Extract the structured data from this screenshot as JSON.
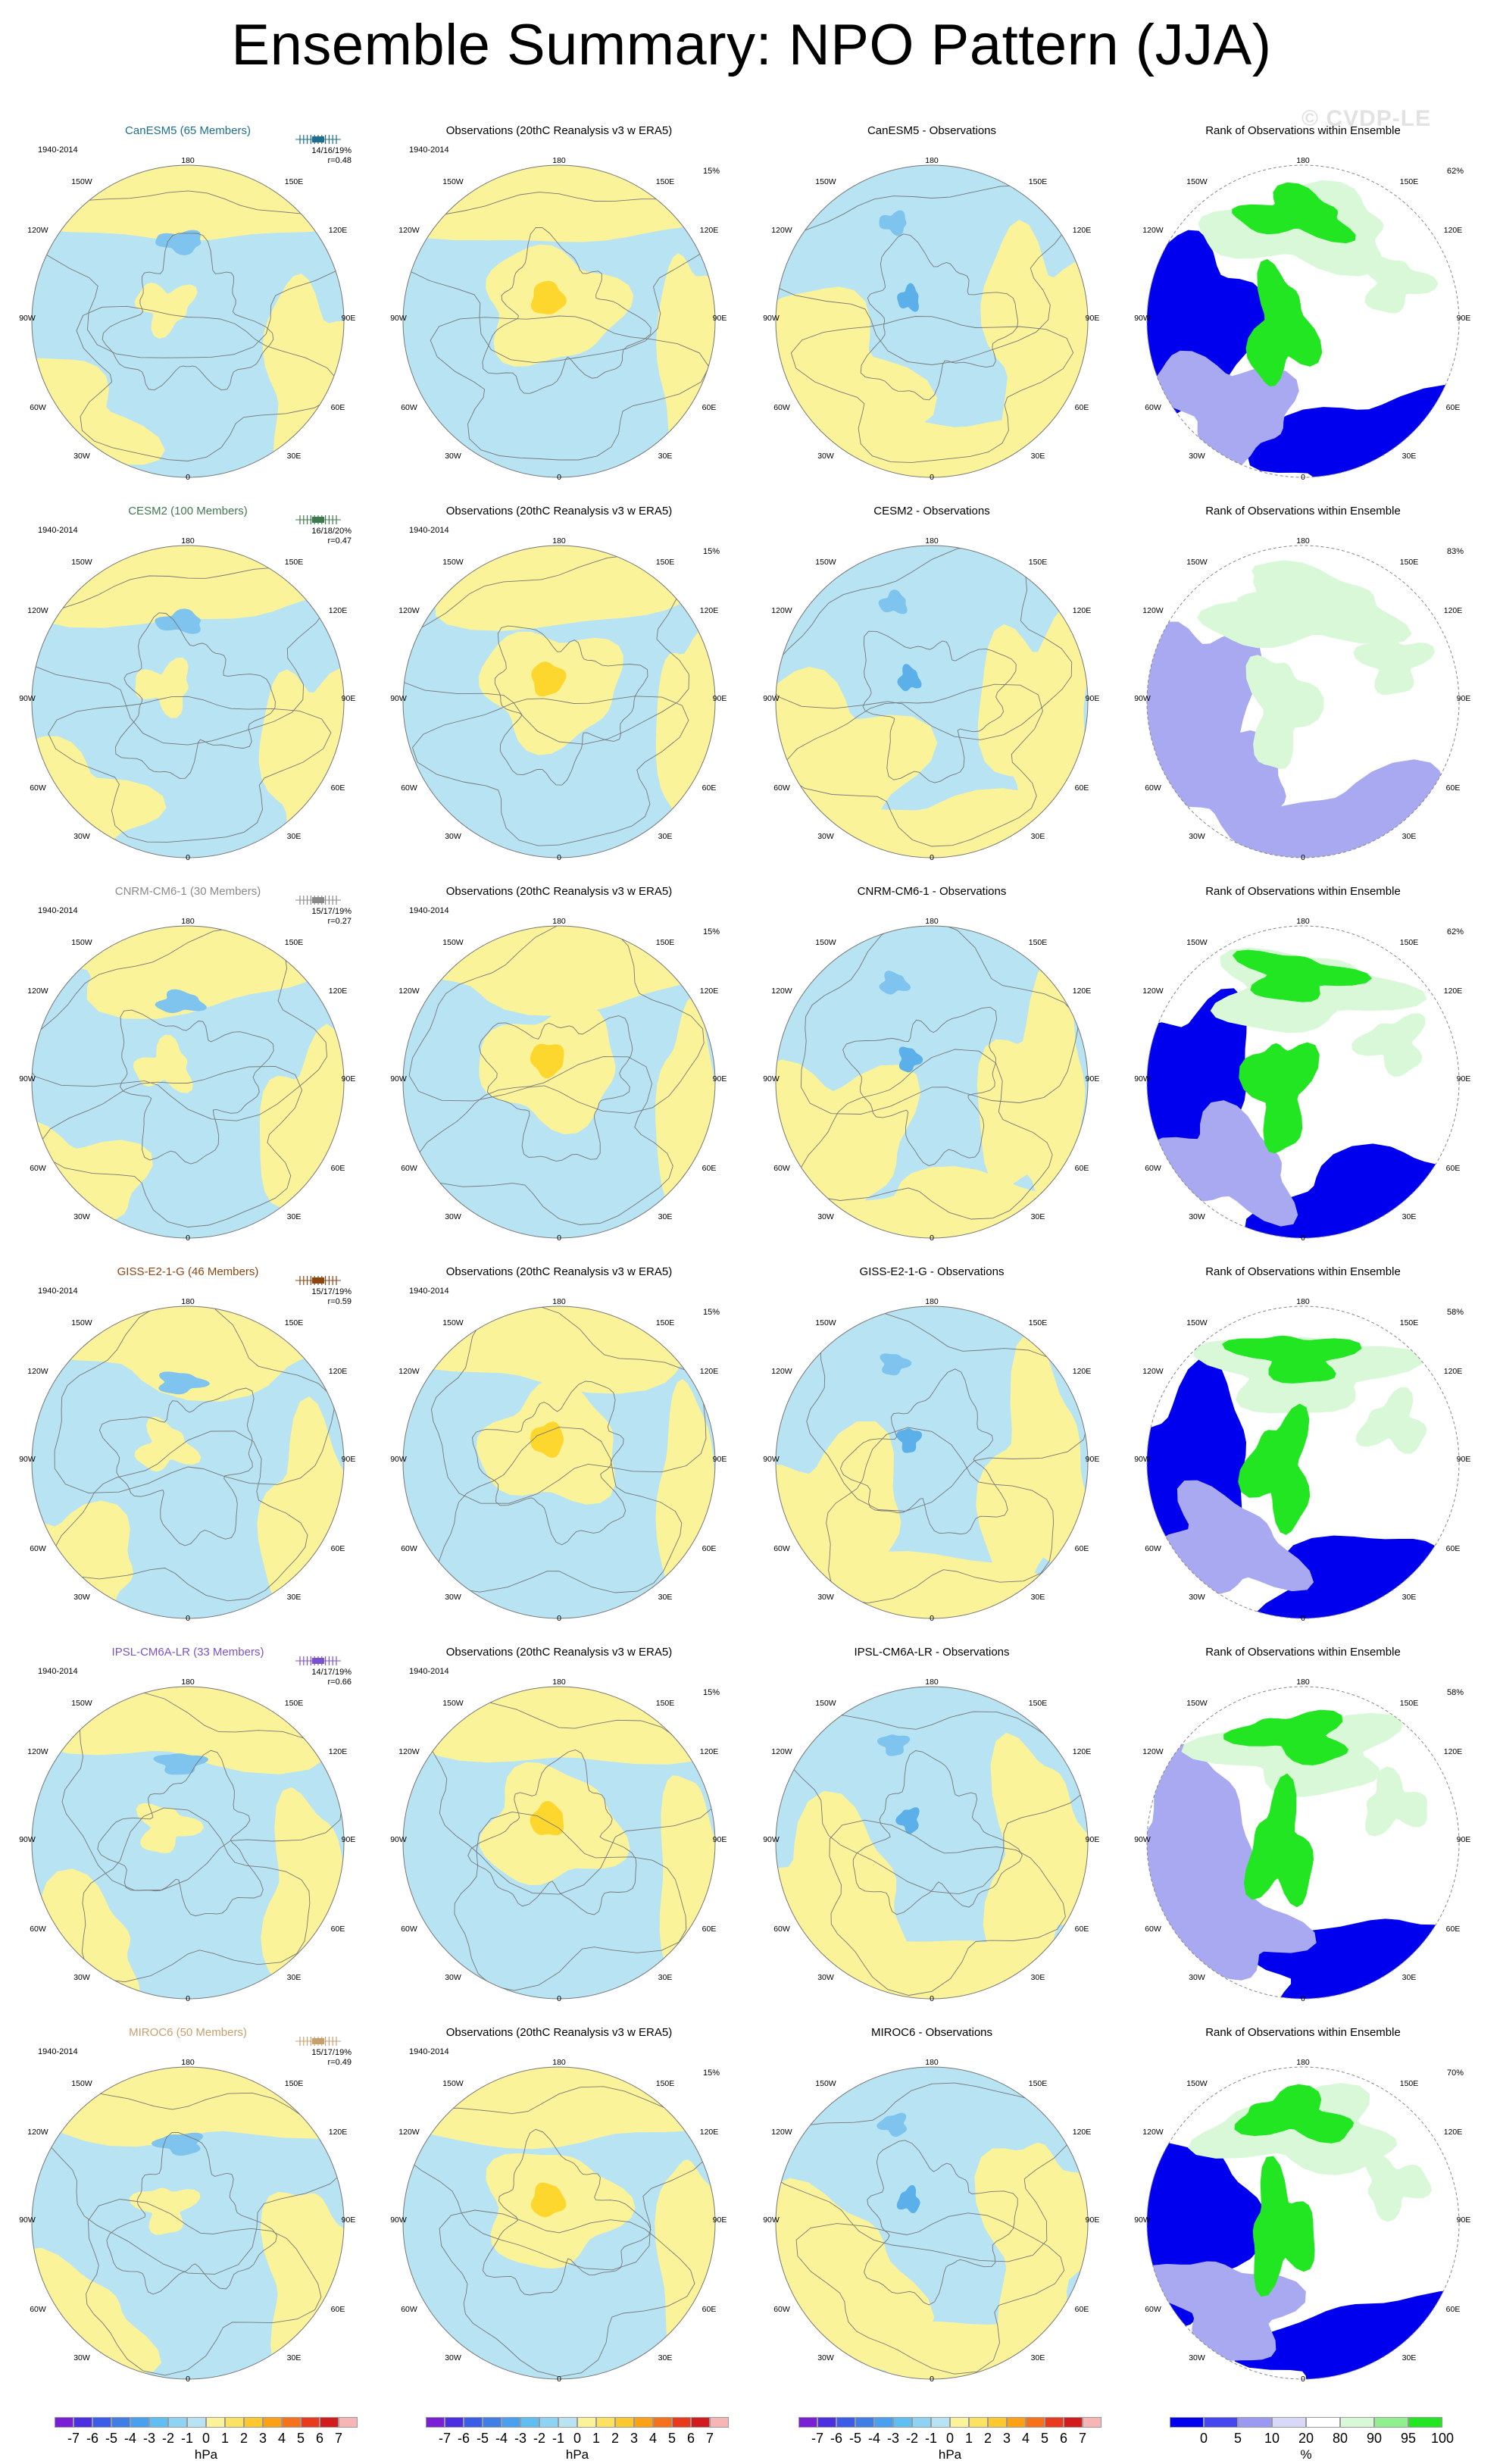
{
  "title": "Ensemble Summary: NPO Pattern (JJA)",
  "watermark": "© CVDP-LE",
  "period": "1940-2014",
  "obs_title": "Observations (20thC Reanalysis v3 w ERA5)",
  "obs_pct": "15%",
  "rank_title": "Rank of Observations within Ensemble",
  "lon_labels": [
    "180",
    "150W",
    "150E",
    "120W",
    "120E",
    "90W",
    "90E",
    "60W",
    "60E",
    "30W",
    "30E",
    "0"
  ],
  "rows": [
    {
      "model": "CanESM5 (65 Members)",
      "color": "#1e6e8c",
      "diff_title": "CanESM5 - Observations",
      "stat1": "14/16/19%",
      "stat2": "r=0.48",
      "rank_pct": "62%"
    },
    {
      "model": "CESM2 (100 Members)",
      "color": "#3f7a4f",
      "diff_title": "CESM2 - Observations",
      "stat1": "16/18/20%",
      "stat2": "r=0.47",
      "rank_pct": "83%"
    },
    {
      "model": "CNRM-CM6-1 (30 Members)",
      "color": "#8a8a8a",
      "diff_title": "CNRM-CM6-1 - Observations",
      "stat1": "15/17/19%",
      "stat2": "r=0.27",
      "rank_pct": "62%"
    },
    {
      "model": "GISS-E2-1-G (46 Members)",
      "color": "#8b4513",
      "diff_title": "GISS-E2-1-G - Observations",
      "stat1": "15/17/19%",
      "stat2": "r=0.59",
      "rank_pct": "58%"
    },
    {
      "model": "IPSL-CM6A-LR (33 Members)",
      "color": "#7b52c9",
      "diff_title": "IPSL-CM6A-LR - Observations",
      "stat1": "14/17/19%",
      "stat2": "r=0.66",
      "rank_pct": "58%"
    },
    {
      "model": "MIROC6 (50 Members)",
      "color": "#c8a06e",
      "diff_title": "MIROC6 - Observations",
      "stat1": "15/17/19%",
      "stat2": "r=0.49",
      "rank_pct": "70%"
    }
  ],
  "colorbar_hpa": {
    "ticks": [
      "-7",
      "-6",
      "-5",
      "-4",
      "-3",
      "-2",
      "-1",
      "0",
      "1",
      "2",
      "3",
      "4",
      "5",
      "6",
      "7"
    ],
    "colors": [
      "#7a1fd6",
      "#4b2fe0",
      "#3b5ce8",
      "#3f7ee6",
      "#4aa0f0",
      "#5fbef2",
      "#8fd3f4",
      "#b8e3f2",
      "#fbf39a",
      "#fde262",
      "#fdc72e",
      "#fda114",
      "#f5721b",
      "#ea3a1e",
      "#d21c1c",
      "#f7b5b5"
    ],
    "units": "hPa"
  },
  "colorbar_rank": {
    "ticks": [
      "0",
      "5",
      "10",
      "20",
      "80",
      "90",
      "95",
      "100"
    ],
    "colors": [
      "#0000ee",
      "#4646f0",
      "#9a9af2",
      "#d8d8f8",
      "#ffffff",
      "#d8f8d8",
      "#90f090",
      "#22e622"
    ],
    "units": "%"
  },
  "colors": {
    "pos_fill": "#fbf39a",
    "neg_fill": "#b8e3f2",
    "pos_strong": "#fdd62e",
    "neg_strong": "#7fc4ee",
    "neg_mid": "#5bb0ea",
    "rank_low": "#0000ee",
    "rank_mid": "#a9a9f2",
    "rank_high": "#22e622",
    "rank_light": "#d8f8d8"
  }
}
